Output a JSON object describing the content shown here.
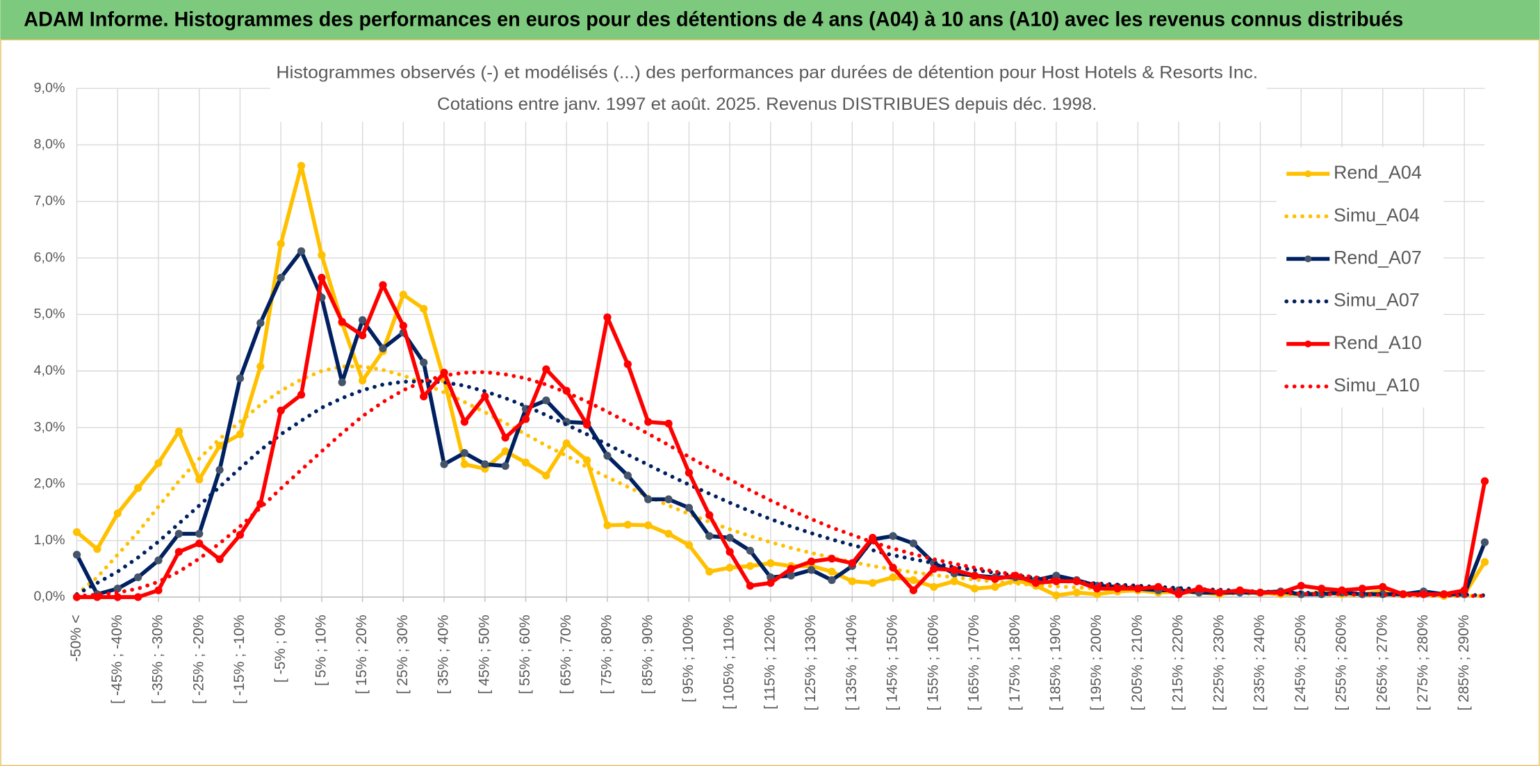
{
  "banner": {
    "title": "ADAM Informe. Histogrammes des performances en euros pour des détentions de 4 ans (A04) à 10 ans (A10) avec les revenus connus distribués"
  },
  "chart_data": {
    "type": "line",
    "title": "Histogrammes observés (-) et modélisés (...) des performances par durées de détention pour Host Hotels & Resorts Inc.",
    "subtitle": "Cotations entre janv. 1997 et août. 2025. Revenus DISTRIBUES depuis déc. 1998.",
    "categories": [
      "-50% <",
      null,
      "[ -45% ; -40%",
      null,
      "[ -35% ; -30%",
      null,
      "[ -25% ; -20%",
      null,
      "[ -15% ; -10%",
      null,
      "[ -5% ; 0%",
      null,
      "[ 5% ; 10%",
      null,
      "[ 15% ; 20%",
      null,
      "[ 25% ; 30%",
      null,
      "[ 35% ; 40%",
      null,
      "[ 45% ; 50%",
      null,
      "[ 55% ; 60%",
      null,
      "[ 65% ; 70%",
      null,
      "[ 75% ; 80%",
      null,
      "[ 85% ; 90%",
      null,
      "[ 95% ; 100%",
      null,
      "[ 105% ; 110%",
      null,
      "[ 115% ; 120%",
      null,
      "[ 125% ; 130%",
      null,
      "[ 135% ; 140%",
      null,
      "[ 145% ; 150%",
      null,
      "[ 155% ; 160%",
      null,
      "[ 165% ; 170%",
      null,
      "[ 175% ; 180%",
      null,
      "[ 185% ; 190%",
      null,
      "[ 195% ; 200%",
      null,
      "[ 205% ; 210%",
      null,
      "[ 215% ; 220%",
      null,
      "[ 225% ; 230%",
      null,
      "[ 235% ; 240%",
      null,
      "[ 245% ; 250%",
      null,
      "[ 255% ; 260%",
      null,
      "[ 265% ; 270%",
      null,
      "[ 275% ; 280%",
      null,
      "[ 285% ; 290%",
      null
    ],
    "series": [
      {
        "name": "Rend_A04",
        "color": "#ffc000",
        "style": "solid",
        "markers": true,
        "values": [
          1.15,
          0.85,
          1.48,
          1.93,
          2.37,
          2.93,
          2.08,
          2.68,
          2.88,
          4.08,
          6.25,
          7.63,
          6.05,
          4.85,
          3.83,
          4.35,
          5.35,
          5.1,
          3.85,
          2.35,
          2.27,
          2.58,
          2.38,
          2.15,
          2.72,
          2.42,
          1.27,
          1.28,
          1.27,
          1.12,
          0.92,
          0.45,
          0.52,
          0.55,
          0.6,
          0.55,
          0.55,
          0.45,
          0.28,
          0.25,
          0.35,
          0.3,
          0.18,
          0.28,
          0.15,
          0.18,
          0.3,
          0.2,
          0.03,
          0.08,
          0.05,
          0.1,
          0.12,
          0.08,
          0.1,
          0.08,
          0.05,
          0.1,
          0.08,
          0.05,
          0.05,
          0.08,
          0.05,
          0.05,
          0.1,
          0.05,
          0.08,
          0.02,
          0.05,
          0.62
        ]
      },
      {
        "name": "Simu_A04",
        "color": "#ffc000",
        "style": "dotted",
        "markers": false,
        "values": [
          0.05,
          0.35,
          0.75,
          1.15,
          1.6,
          2.05,
          2.45,
          2.8,
          3.1,
          3.4,
          3.65,
          3.85,
          4.0,
          4.08,
          4.08,
          4.02,
          3.92,
          3.78,
          3.62,
          3.45,
          3.27,
          3.08,
          2.88,
          2.68,
          2.5,
          2.3,
          2.12,
          1.95,
          1.78,
          1.62,
          1.47,
          1.33,
          1.2,
          1.08,
          0.97,
          0.87,
          0.78,
          0.7,
          0.62,
          0.55,
          0.49,
          0.44,
          0.39,
          0.35,
          0.31,
          0.27,
          0.24,
          0.21,
          0.19,
          0.17,
          0.15,
          0.13,
          0.12,
          0.1,
          0.09,
          0.08,
          0.07,
          0.06,
          0.06,
          0.05,
          0.05,
          0.04,
          0.04,
          0.03,
          0.03,
          0.03,
          0.02,
          0.02,
          0.02,
          0.02
        ]
      },
      {
        "name": "Rend_A07",
        "color": "#002060",
        "style": "solid",
        "markers": true,
        "values": [
          0.75,
          0.05,
          0.15,
          0.35,
          0.65,
          1.12,
          1.12,
          2.25,
          3.87,
          4.85,
          5.65,
          6.12,
          5.3,
          3.8,
          4.9,
          4.4,
          4.68,
          4.15,
          2.35,
          2.55,
          2.35,
          2.32,
          3.33,
          3.48,
          3.1,
          3.08,
          2.5,
          2.15,
          1.73,
          1.73,
          1.58,
          1.08,
          1.05,
          0.82,
          0.35,
          0.38,
          0.48,
          0.3,
          0.55,
          1.02,
          1.08,
          0.95,
          0.6,
          0.42,
          0.38,
          0.35,
          0.35,
          0.3,
          0.38,
          0.3,
          0.2,
          0.18,
          0.15,
          0.12,
          0.12,
          0.08,
          0.08,
          0.08,
          0.08,
          0.1,
          0.05,
          0.05,
          0.08,
          0.05,
          0.05,
          0.05,
          0.1,
          0.05,
          0.05,
          0.97
        ]
      },
      {
        "name": "Simu_A07",
        "color": "#002060",
        "style": "dotted",
        "markers": false,
        "values": [
          0.05,
          0.25,
          0.45,
          0.7,
          0.98,
          1.3,
          1.62,
          1.95,
          2.28,
          2.6,
          2.88,
          3.12,
          3.35,
          3.52,
          3.66,
          3.76,
          3.81,
          3.82,
          3.8,
          3.74,
          3.64,
          3.52,
          3.38,
          3.22,
          3.05,
          2.88,
          2.7,
          2.52,
          2.34,
          2.16,
          1.99,
          1.83,
          1.67,
          1.52,
          1.38,
          1.25,
          1.13,
          1.02,
          0.92,
          0.83,
          0.74,
          0.67,
          0.6,
          0.53,
          0.48,
          0.43,
          0.38,
          0.34,
          0.3,
          0.27,
          0.24,
          0.22,
          0.2,
          0.18,
          0.16,
          0.14,
          0.13,
          0.11,
          0.1,
          0.09,
          0.08,
          0.07,
          0.07,
          0.06,
          0.05,
          0.05,
          0.04,
          0.04,
          0.04,
          0.03
        ]
      },
      {
        "name": "Rend_A10",
        "color": "#ff0000",
        "style": "solid",
        "markers": true,
        "values": [
          0,
          0,
          0,
          0,
          0.12,
          0.8,
          0.95,
          0.67,
          1.1,
          1.65,
          3.3,
          3.58,
          5.65,
          4.87,
          4.63,
          5.52,
          4.8,
          3.55,
          3.97,
          3.1,
          3.55,
          2.82,
          3.15,
          4.03,
          3.65,
          3.05,
          4.95,
          4.12,
          3.1,
          3.07,
          2.2,
          1.45,
          0.8,
          0.2,
          0.25,
          0.5,
          0.63,
          0.68,
          0.6,
          1.05,
          0.52,
          0.12,
          0.5,
          0.48,
          0.38,
          0.32,
          0.38,
          0.25,
          0.28,
          0.28,
          0.15,
          0.15,
          0.15,
          0.18,
          0.05,
          0.15,
          0.08,
          0.12,
          0.08,
          0.08,
          0.2,
          0.15,
          0.12,
          0.15,
          0.18,
          0.05,
          0.05,
          0.05,
          0.12,
          2.05
        ]
      },
      {
        "name": "Simu_A10",
        "color": "#ff0000",
        "style": "dotted",
        "markers": false,
        "values": [
          0.02,
          0.04,
          0.08,
          0.15,
          0.27,
          0.45,
          0.68,
          0.95,
          1.25,
          1.58,
          1.92,
          2.25,
          2.58,
          2.9,
          3.2,
          3.45,
          3.66,
          3.82,
          3.92,
          3.97,
          3.98,
          3.94,
          3.87,
          3.76,
          3.62,
          3.46,
          3.28,
          3.09,
          2.89,
          2.69,
          2.48,
          2.28,
          2.08,
          1.89,
          1.71,
          1.54,
          1.38,
          1.23,
          1.1,
          0.97,
          0.86,
          0.76,
          0.67,
          0.59,
          0.52,
          0.45,
          0.4,
          0.35,
          0.3,
          0.26,
          0.23,
          0.2,
          0.17,
          0.15,
          0.13,
          0.11,
          0.1,
          0.09,
          0.08,
          0.07,
          0.06,
          0.05,
          0.05,
          0.04,
          0.04,
          0.03,
          0.03,
          0.03,
          0.02,
          0.02
        ]
      }
    ],
    "ylim": [
      0,
      9
    ],
    "yticks": [
      {
        "value": 0,
        "label": "0,0%"
      },
      {
        "value": 1,
        "label": "1,0%"
      },
      {
        "value": 2,
        "label": "2,0%"
      },
      {
        "value": 3,
        "label": "3,0%"
      },
      {
        "value": 4,
        "label": "4,0%"
      },
      {
        "value": 5,
        "label": "5,0%"
      },
      {
        "value": 6,
        "label": "6,0%"
      },
      {
        "value": 7,
        "label": "7,0%"
      },
      {
        "value": 8,
        "label": "8,0%"
      },
      {
        "value": 9,
        "label": "9,0%"
      }
    ],
    "grid": true,
    "legend": "right"
  }
}
